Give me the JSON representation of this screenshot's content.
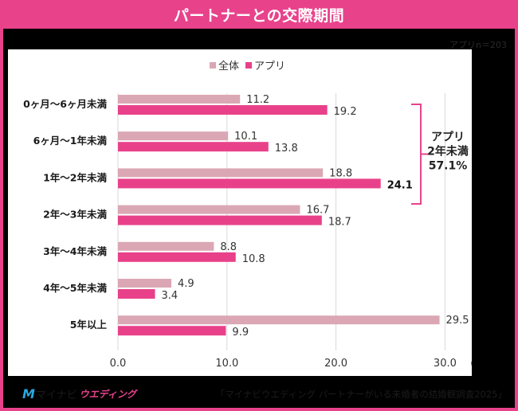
{
  "header": {
    "title": "パートナーとの交際期間"
  },
  "sample_note": "アプリn＝203",
  "footer": {
    "logo_mark": "M",
    "logo_text_1": "マイナビ",
    "logo_text_2": "ウエディング",
    "source": "「マイナビウエディング パートナーがいる未婚者の結婚観調査2025」"
  },
  "colors": {
    "accent": "#e8428b",
    "series_all": "#dba7b4",
    "series_app": "#e8418a",
    "grid": "#d9d9d9"
  },
  "annotation": {
    "line1": "アプリ",
    "line2": "2年未満",
    "line3": "57.1%"
  },
  "chart_data": {
    "type": "bar",
    "orientation": "horizontal",
    "title": "パートナーとの交際期間",
    "xlabel": "(%)",
    "ylabel": "",
    "xlim": [
      0,
      30
    ],
    "xticks": [
      "0.0",
      "10.0",
      "20.0",
      "30.0"
    ],
    "grid": true,
    "legend_position": "top-center",
    "categories": [
      "0ヶ月～6ヶ月未満",
      "6ヶ月～1年未満",
      "1年～2年未満",
      "2年～3年未満",
      "3年～4年未満",
      "4年～5年未満",
      "5年以上"
    ],
    "series": [
      {
        "name": "全体",
        "values": [
          11.2,
          10.1,
          18.8,
          16.7,
          8.8,
          4.9,
          29.5
        ]
      },
      {
        "name": "アプリ",
        "values": [
          19.2,
          13.8,
          24.1,
          18.7,
          10.8,
          3.4,
          9.9
        ]
      }
    ],
    "highlighted_label": {
      "series": "アプリ",
      "category_index": 2
    },
    "bracket_annotation": {
      "covers_categories": [
        0,
        1,
        2
      ],
      "series": "アプリ",
      "text": [
        "アプリ",
        "2年未満",
        "57.1%"
      ]
    }
  }
}
